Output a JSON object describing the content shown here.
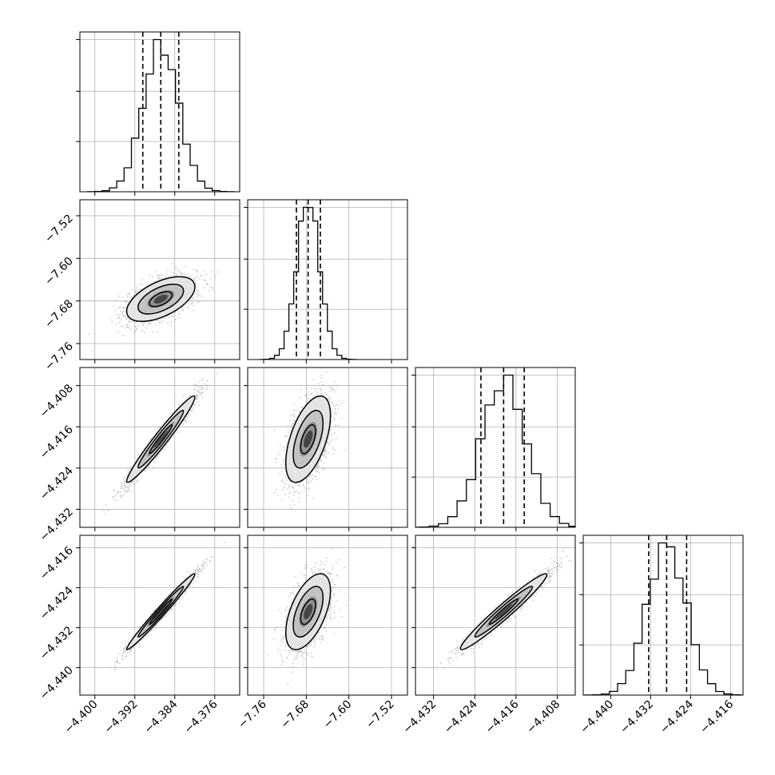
{
  "chart_data": {
    "type": "corner",
    "title": "",
    "parameters": [
      {
        "label": "",
        "range": [
          -4.403,
          -4.371
        ],
        "ticks": [
          -4.4,
          -4.392,
          -4.384,
          -4.376
        ],
        "tick_labels": [
          "−4.400",
          "−4.392",
          "−4.384",
          "−4.376"
        ],
        "quantiles": [
          -4.3904,
          -4.3868,
          -4.3832
        ],
        "median": -4.3868,
        "sd": 0.0035
      },
      {
        "label": "",
        "range": [
          -7.79,
          -7.49
        ],
        "ticks": [
          -7.76,
          -7.68,
          -7.6,
          -7.52
        ],
        "tick_labels": [
          "−7.76",
          "−7.68",
          "−7.60",
          "−7.52"
        ],
        "quantiles": [
          -7.6985,
          -7.6765,
          -7.6535
        ],
        "median": -7.6765,
        "sd": 0.0215
      },
      {
        "label": "",
        "range": [
          -4.4355,
          -4.4045
        ],
        "ticks": [
          -4.432,
          -4.424,
          -4.416,
          -4.408
        ],
        "tick_labels": [
          "−4.432",
          "−4.424",
          "−4.416",
          "−4.408"
        ],
        "quantiles": [
          -4.4228,
          -4.4184,
          -4.4144
        ],
        "median": -4.4184,
        "sd": 0.0043
      },
      {
        "label": "",
        "range": [
          -4.4455,
          -4.4135
        ],
        "ticks": [
          -4.44,
          -4.432,
          -4.424,
          -4.416
        ],
        "tick_labels": [
          "−4.440",
          "−4.432",
          "−4.424",
          "−4.416"
        ],
        "quantiles": [
          -4.4324,
          -4.4288,
          -4.4248
        ],
        "median": -4.4288,
        "sd": 0.0039
      }
    ],
    "correlations": [
      [
        1,
        0.55,
        0.97,
        0.985
      ],
      [
        0.55,
        1,
        0.55,
        0.55
      ],
      [
        0.97,
        0.55,
        1,
        0.97
      ],
      [
        0.985,
        0.55,
        0.97,
        1
      ]
    ],
    "contour_levels": [
      0.5,
      1.0,
      1.5
    ],
    "histogram_bins": 20,
    "grid": true,
    "colors": {
      "line": "#000000",
      "scatter": "#777777",
      "grid": "#b0b0b0"
    }
  }
}
